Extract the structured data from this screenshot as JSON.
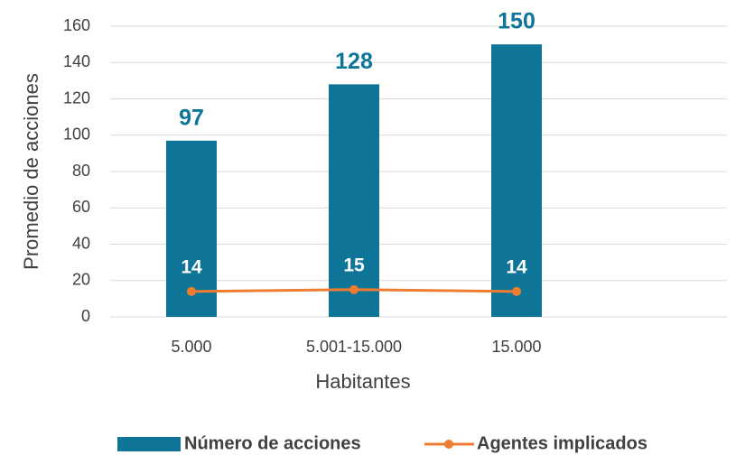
{
  "chart_data": {
    "type": "bar",
    "categories": [
      "5.000",
      "5.001-15.000",
      "15.000"
    ],
    "series": [
      {
        "name": "Número de acciones",
        "type": "bar",
        "color": "#0e7599",
        "values": [
          97,
          128,
          150
        ]
      },
      {
        "name": "Agentes implicados",
        "type": "line",
        "color": "#ed7d31",
        "values": [
          14,
          15,
          14
        ]
      }
    ],
    "x_label": "Habitantes",
    "y_label": "Promedio de acciones",
    "ylim": [
      0,
      160
    ],
    "yticks": [
      0,
      20,
      40,
      60,
      80,
      100,
      120,
      140,
      160
    ],
    "grid": true,
    "legend": "bottom"
  }
}
